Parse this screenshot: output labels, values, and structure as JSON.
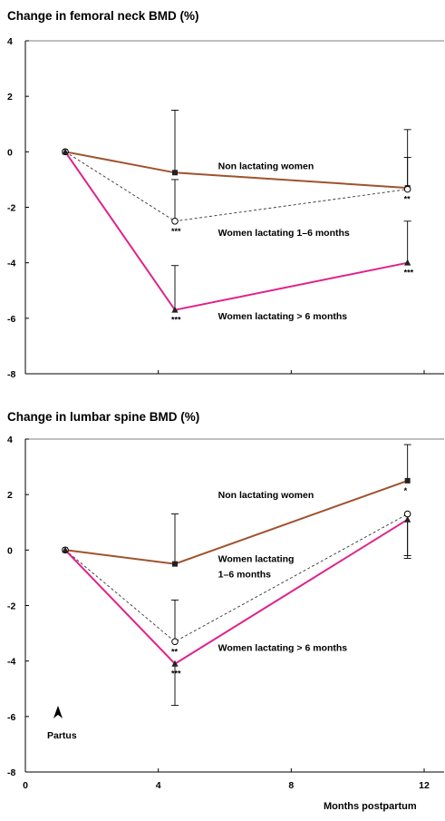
{
  "colors": {
    "non_lactating": "#a0522d",
    "lactating_1_6": "#333333",
    "lactating_gt6": "#e0218a",
    "axis": "#000000"
  },
  "shared": {
    "xlabel": "Months postpartum",
    "x_tick_labels": [
      "0",
      "4",
      "8",
      "12"
    ],
    "x_ticks": [
      0,
      4,
      8,
      12
    ],
    "xlim": [
      0,
      12.6
    ],
    "partus_label": "Partus",
    "partus_x": 1.2
  },
  "chart_data": [
    {
      "type": "line",
      "title": "Change in femoral neck BMD (%)",
      "ylabel": "",
      "ylim": [
        -8,
        4
      ],
      "y_ticks": [
        -8,
        -6,
        -4,
        -2,
        0,
        2,
        4
      ],
      "y_tick_labels": [
        "-8",
        "-6",
        "-4",
        "-2",
        "0",
        "2",
        "4"
      ],
      "series": [
        {
          "key": "non_lactating",
          "name": "Non lactating women",
          "marker": "square",
          "style": "solid",
          "x": [
            1.2,
            4.5,
            11.5
          ],
          "y": [
            0,
            -0.75,
            -1.3
          ],
          "err_hi": [
            null,
            1.5,
            0.8
          ],
          "err_lo": [
            null,
            null,
            null
          ],
          "sig": [
            "",
            "",
            ""
          ]
        },
        {
          "key": "lactating_1_6",
          "name": "Women lactating 1–6 months",
          "marker": "circle",
          "style": "dashed",
          "x": [
            1.2,
            4.5,
            11.5
          ],
          "y": [
            0,
            -2.5,
            -1.35
          ],
          "err_hi": [
            null,
            -1.0,
            -0.2
          ],
          "err_lo": [
            null,
            null,
            null
          ],
          "sig": [
            "",
            "***",
            "**"
          ]
        },
        {
          "key": "lactating_gt6",
          "name": "Women lactating > 6 months",
          "marker": "triangle",
          "style": "solid",
          "x": [
            1.2,
            4.5,
            11.5
          ],
          "y": [
            0,
            -5.7,
            -4.0
          ],
          "err_hi": [
            null,
            -4.1,
            -2.5
          ],
          "err_lo": [
            null,
            null,
            null
          ],
          "sig": [
            "",
            "***",
            "***"
          ]
        }
      ],
      "labels": [
        {
          "text": "Non lactating women",
          "x": 5.8,
          "y": -0.5
        },
        {
          "text": "Women lactating 1–6 months",
          "x": 5.8,
          "y": -2.9
        },
        {
          "text": "Women lactating > 6 months",
          "x": 5.8,
          "y": -5.9
        }
      ]
    },
    {
      "type": "line",
      "title": "Change in lumbar spine BMD (%)",
      "ylabel": "",
      "ylim": [
        -8,
        4
      ],
      "y_ticks": [
        -8,
        -6,
        -4,
        -2,
        0,
        2,
        4
      ],
      "y_tick_labels": [
        "-8",
        "-6",
        "-4",
        "-2",
        "0",
        "2",
        "4"
      ],
      "series": [
        {
          "key": "non_lactating",
          "name": "Non lactating women",
          "marker": "square",
          "style": "solid",
          "x": [
            1.2,
            4.5,
            11.5
          ],
          "y": [
            0,
            -0.5,
            2.5
          ],
          "err_hi": [
            null,
            1.3,
            3.8
          ],
          "err_lo": [
            null,
            null,
            null
          ],
          "sig": [
            "",
            "",
            "*"
          ]
        },
        {
          "key": "lactating_1_6",
          "name": "Women lactating 1–6 months",
          "marker": "circle",
          "style": "dashed",
          "x": [
            1.2,
            4.5,
            11.5
          ],
          "y": [
            0,
            -3.3,
            1.3
          ],
          "err_hi": [
            null,
            -1.8,
            null
          ],
          "err_lo": [
            null,
            null,
            -0.2
          ],
          "sig": [
            "",
            "**",
            ""
          ]
        },
        {
          "key": "lactating_gt6",
          "name": "Women lactating > 6 months",
          "marker": "triangle",
          "style": "solid",
          "x": [
            1.2,
            4.5,
            11.5
          ],
          "y": [
            0,
            -4.1,
            1.1
          ],
          "err_hi": [
            null,
            null,
            null
          ],
          "err_lo": [
            null,
            -5.6,
            -0.3
          ],
          "sig": [
            "",
            "***",
            ""
          ]
        }
      ],
      "labels": [
        {
          "text": "Non lactating women",
          "x": 5.8,
          "y": 2.0
        },
        {
          "text": "Women lactating",
          "x": 5.8,
          "y": -0.3
        },
        {
          "text": "1–6 months",
          "x": 5.8,
          "y": -0.85
        },
        {
          "text": "Women lactating > 6 months",
          "x": 5.8,
          "y": -3.5
        }
      ]
    }
  ]
}
